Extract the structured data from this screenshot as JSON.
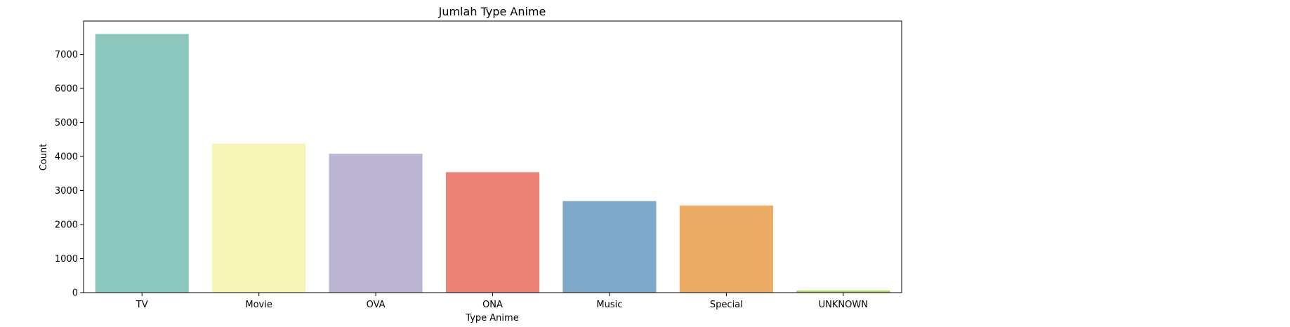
{
  "chart_data": {
    "type": "bar",
    "title": "Jumlah Type Anime",
    "xlabel": "Type Anime",
    "ylabel": "Count",
    "categories": [
      "TV",
      "Movie",
      "OVA",
      "ONA",
      "Music",
      "Special",
      "UNKNOWN"
    ],
    "values": [
      7600,
      4380,
      4080,
      3540,
      2690,
      2560,
      60
    ],
    "ylim": [
      0,
      7980
    ],
    "yticks": [
      0,
      1000,
      2000,
      3000,
      4000,
      5000,
      6000,
      7000
    ],
    "colors": [
      "#8dc8be",
      "#f6f5b6",
      "#bcb6d4",
      "#ea8278",
      "#7fa8c8",
      "#ecac65",
      "#a8d468"
    ],
    "grid": false,
    "legend": "none"
  }
}
